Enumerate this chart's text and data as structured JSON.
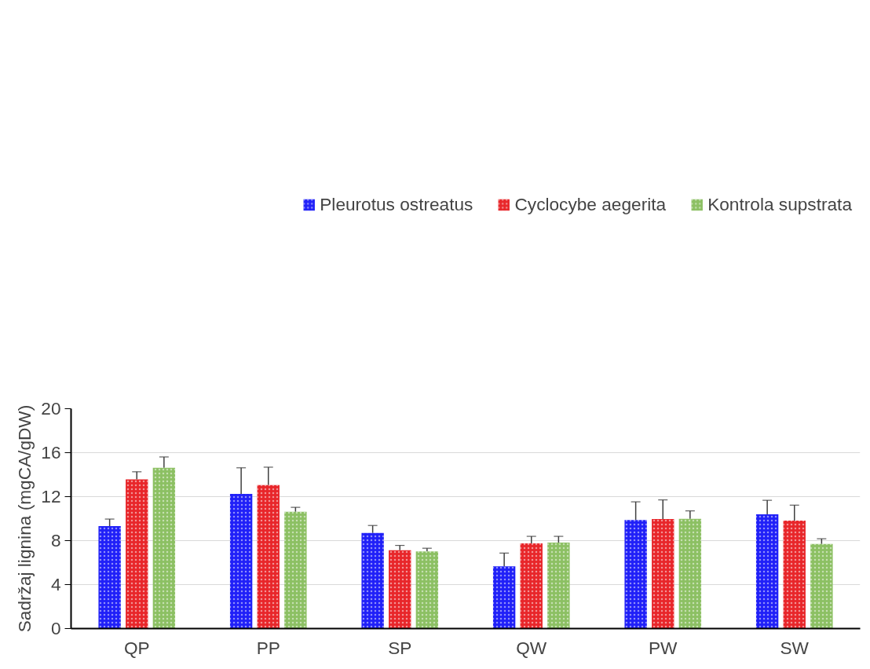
{
  "chart_data": {
    "type": "bar",
    "ylabel": "Sadržaj lignina (mgCA/gDW)",
    "categories": [
      "QP",
      "PP",
      "SP",
      "QW",
      "PW",
      "SW"
    ],
    "series": [
      {
        "name": "Pleurotus ostreatus",
        "color": "#2020f8",
        "values": [
          9.32,
          12.25,
          8.69,
          5.66,
          9.88,
          10.4
        ],
        "errors": [
          [
            9.32,
            9.96
          ],
          [
            12.25,
            14.62
          ],
          [
            8.69,
            9.38
          ],
          [
            5.66,
            6.87
          ],
          [
            9.88,
            11.53
          ],
          [
            10.4,
            11.67
          ]
        ]
      },
      {
        "name": "Cyclocybe aegerita",
        "color": "#e8262a",
        "values": [
          13.57,
          13.05,
          7.12,
          7.75,
          9.96,
          9.82
        ],
        "errors": [
          [
            13.57,
            14.26
          ],
          [
            13.05,
            14.68
          ],
          [
            7.12,
            7.56
          ],
          [
            7.75,
            8.39
          ],
          [
            9.96,
            11.7
          ],
          [
            9.82,
            11.23
          ]
        ]
      },
      {
        "name": "Kontrola supstrata",
        "color": "#8cc063",
        "values": [
          14.62,
          10.62,
          7.01,
          7.83,
          9.99,
          7.7
        ],
        "errors": [
          [
            14.62,
            15.61
          ],
          [
            10.62,
            11.03
          ],
          [
            7.01,
            7.31
          ],
          [
            7.83,
            8.39
          ],
          [
            9.99,
            10.7
          ],
          [
            7.7,
            8.17
          ]
        ]
      }
    ],
    "ylim": [
      0,
      20
    ],
    "yticks": [
      0,
      4,
      8,
      12,
      16,
      20
    ],
    "grid": "y",
    "legend": "top right"
  }
}
